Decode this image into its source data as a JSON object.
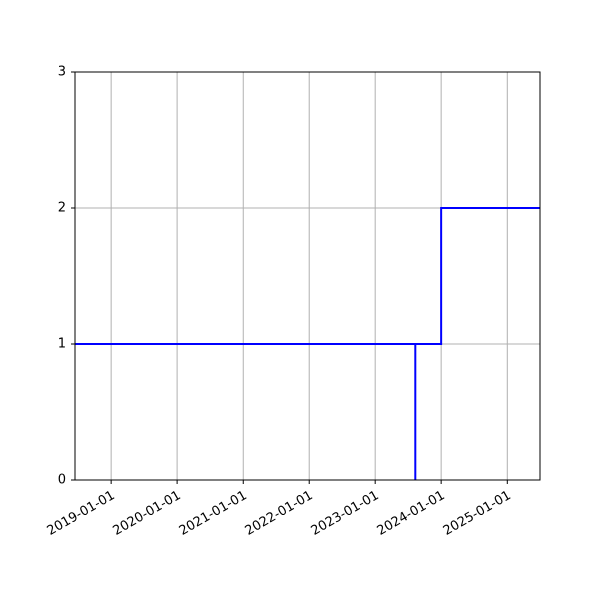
{
  "chart_data": {
    "type": "line",
    "title": "",
    "xlabel": "",
    "ylabel": "",
    "x_axis": {
      "scale": "date",
      "range": [
        "2018-06-15",
        "2025-07-01"
      ],
      "tick_labels": [
        "2019-01-01",
        "2020-01-01",
        "2021-01-01",
        "2022-01-01",
        "2023-01-01",
        "2024-01-01",
        "2025-01-01"
      ],
      "tick_label_rotation_deg": 30
    },
    "y_axis": {
      "range": [
        0,
        3
      ],
      "tick_labels": [
        "0",
        "1",
        "2",
        "3"
      ]
    },
    "grid": true,
    "legend": "none",
    "series": [
      {
        "color": "#0000ff",
        "line_style": "step",
        "points": [
          {
            "x": "2018-06-15",
            "y": 1
          },
          {
            "x": "2023-08-11",
            "y": 1
          },
          {
            "x": "2023-08-11",
            "y": 0
          },
          {
            "x": "2023-08-11",
            "y": 1
          },
          {
            "x": "2024-01-01",
            "y": 1
          },
          {
            "x": "2024-01-01",
            "y": 2
          },
          {
            "x": "2025-07-01",
            "y": 2
          }
        ]
      }
    ],
    "colors": {
      "grid": "#b0b0b0",
      "axes": "#000000"
    }
  }
}
